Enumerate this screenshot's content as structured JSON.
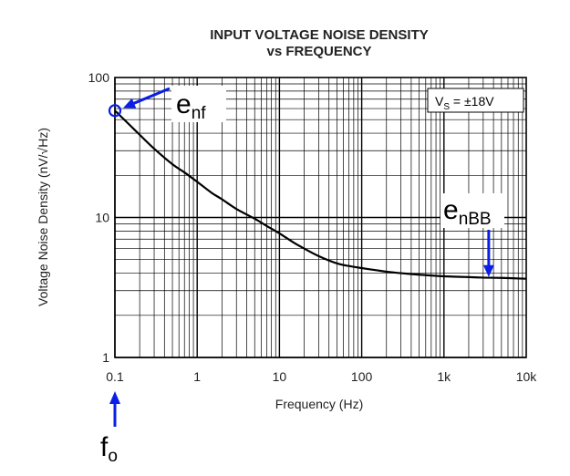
{
  "chart_data": {
    "type": "line",
    "title": "INPUT VOLTAGE NOISE DENSITY",
    "subtitle": "vs FREQUENCY",
    "xlabel": "Frequency (Hz)",
    "ylabel": "Voltage Noise Density (nV/√Hz)",
    "x_scale": "log",
    "y_scale": "log",
    "xlim": [
      0.1,
      10000
    ],
    "ylim": [
      1,
      100
    ],
    "grid": true,
    "x_ticks": [
      "0.1",
      "1",
      "10",
      "100",
      "1k",
      "10k"
    ],
    "y_ticks": [
      "1",
      "10",
      "100"
    ],
    "legend_text": "V",
    "legend_sub": "S",
    "legend_suffix": " = ±18V",
    "legend_position": "top-right",
    "series": [
      {
        "x": [
          0.1,
          0.15,
          0.2,
          0.3,
          0.5,
          0.7,
          1,
          1.5,
          2,
          3,
          5,
          7,
          10,
          15,
          20,
          30,
          50,
          70,
          100,
          150,
          200,
          300,
          500,
          700,
          1000,
          2000,
          3000,
          5000,
          10000
        ],
        "values": [
          58,
          46,
          39,
          31,
          24,
          21,
          18,
          15,
          13.5,
          11.5,
          9.8,
          8.7,
          7.7,
          6.6,
          6.0,
          5.3,
          4.7,
          4.5,
          4.35,
          4.2,
          4.1,
          4.0,
          3.9,
          3.85,
          3.8,
          3.75,
          3.72,
          3.7,
          3.65
        ]
      }
    ],
    "annotations": [
      {
        "label": "e",
        "sub": "nf",
        "x": 0.1,
        "y": 58
      },
      {
        "label": "e",
        "sub": "nBB",
        "x": 3500,
        "y": 3.7
      },
      {
        "label": "f",
        "sub": "o",
        "x": 0.1
      }
    ],
    "annotation_color": "#0a1ee6",
    "line_color": "#000000"
  }
}
